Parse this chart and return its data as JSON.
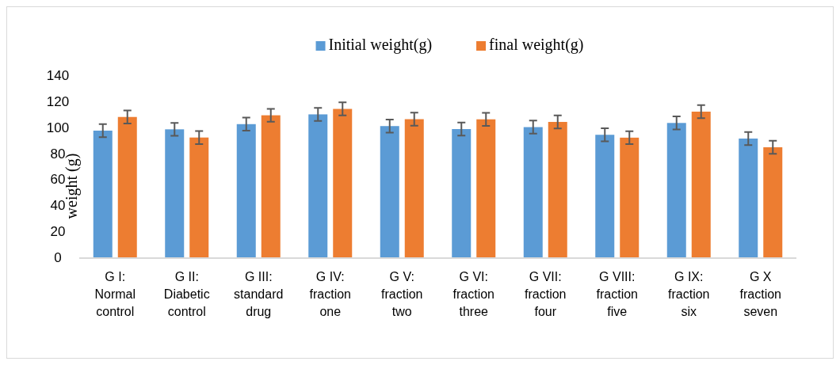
{
  "chart_data": {
    "type": "bar",
    "ylabel": "weight (g)",
    "categories": [
      "G I: Normal control",
      "G II: Diabetic control",
      "G III: standard drug",
      "G IV: fraction one",
      "G V: fraction two",
      "G VI: fraction three",
      "G VII: fraction four",
      "G VIII: fraction five",
      "G IX: fraction six",
      "G X fraction seven"
    ],
    "series": [
      {
        "name": "Initial weight(g)",
        "color": "#5b9bd5",
        "values": [
          97.4,
          98.4,
          102.4,
          109.9,
          100.9,
          98.6,
          100.1,
          94.2,
          103.3,
          91.3
        ],
        "errors": [
          5,
          5,
          5,
          5,
          5,
          5,
          5,
          5,
          5,
          5
        ]
      },
      {
        "name": "final weight(g)",
        "color": "#ed7d31",
        "values": [
          107.9,
          92.1,
          109.2,
          114.1,
          106.2,
          106.1,
          104.1,
          92,
          112,
          84.6
        ],
        "errors": [
          5,
          5,
          5,
          5,
          5,
          5,
          5,
          5,
          5,
          5
        ]
      }
    ],
    "ylim": [
      0,
      140
    ],
    "yticks": [
      0,
      20,
      40,
      60,
      80,
      100,
      120,
      140
    ],
    "legend": "top",
    "grid": false
  }
}
